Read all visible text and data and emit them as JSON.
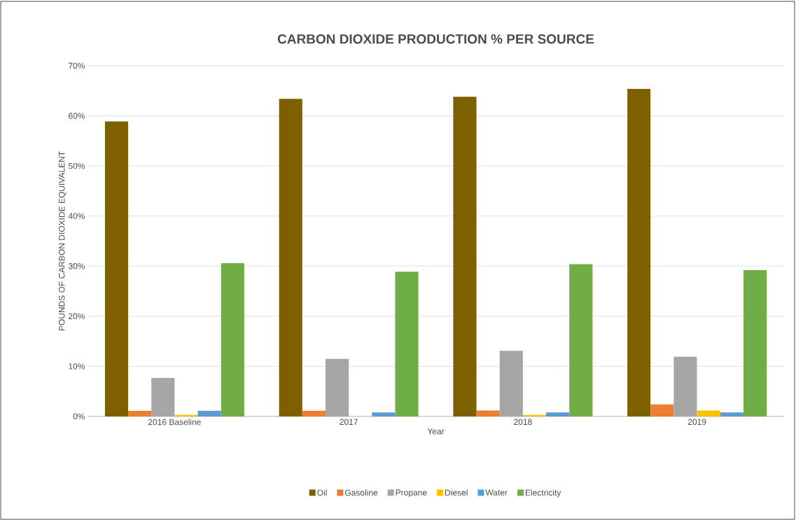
{
  "chart_data": {
    "type": "bar",
    "title": "CARBON DIOXIDE PRODUCTION % PER SOURCE",
    "xlabel": "Year",
    "ylabel": "POUNDS OF CARBON DIOXIDE EQUIVALENT",
    "categories": [
      "2016 Baseline",
      "2017",
      "2018",
      "2019"
    ],
    "series": [
      {
        "name": "Oil",
        "color": "#7f6000",
        "values": [
          58.9,
          63.4,
          63.8,
          65.4
        ]
      },
      {
        "name": "Gasoline",
        "color": "#ed7d31",
        "values": [
          1.1,
          1.1,
          1.2,
          2.4
        ]
      },
      {
        "name": "Propane",
        "color": "#a5a5a5",
        "values": [
          7.7,
          11.5,
          13.1,
          11.9
        ]
      },
      {
        "name": "Diesel",
        "color": "#ffc000",
        "values": [
          0.3,
          0,
          0.3,
          1.2
        ]
      },
      {
        "name": "Water",
        "color": "#5b9bd5",
        "values": [
          1.1,
          0.8,
          0.8,
          0.8
        ]
      },
      {
        "name": "Electricity",
        "color": "#70ad47",
        "values": [
          30.6,
          28.9,
          30.4,
          29.2
        ]
      }
    ],
    "ylim": [
      0,
      70
    ],
    "yticks": [
      {
        "value": 0,
        "label": "0%"
      },
      {
        "value": 10,
        "label": "10%"
      },
      {
        "value": 20,
        "label": "20%"
      },
      {
        "value": 30,
        "label": "30%"
      },
      {
        "value": 40,
        "label": "40%"
      },
      {
        "value": 50,
        "label": "50%"
      },
      {
        "value": 60,
        "label": "60%"
      },
      {
        "value": 70,
        "label": "70%"
      }
    ],
    "grid": "y",
    "legend": "bottom"
  }
}
